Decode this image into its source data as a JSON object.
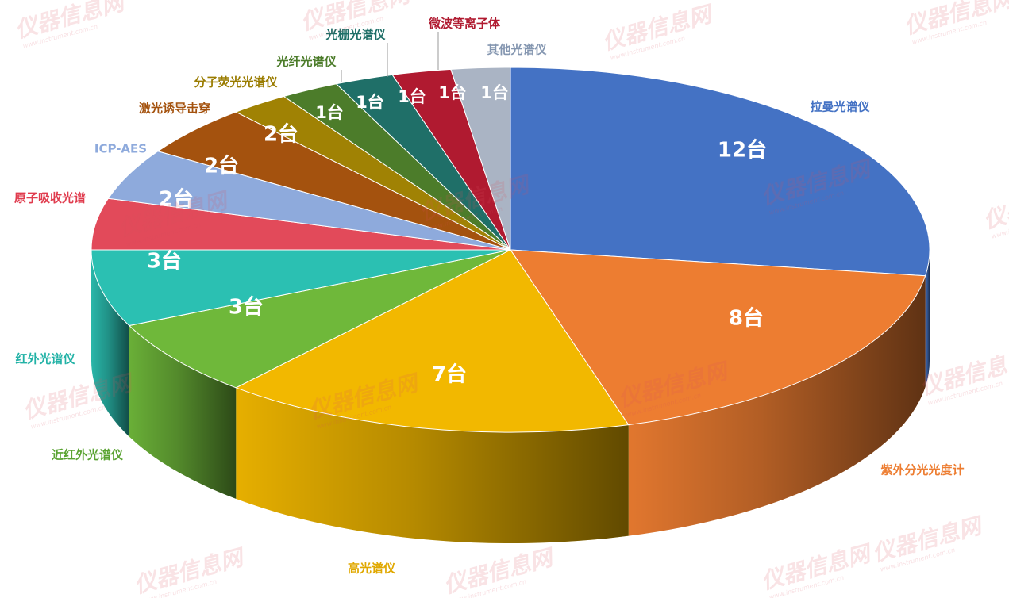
{
  "chart_data": {
    "type": "pie3d",
    "categories": [
      "拉曼光谱仪",
      "紫外分光光度计",
      "高光谱仪",
      "近红外光谱仪",
      "红外光谱仪",
      "原子吸收光谱",
      "ICP-AES",
      "激光诱导击穿",
      "分子荧光光谱仪",
      "光纤光谱仪",
      "光栅光谱仪",
      "微波等离子体",
      "其他光谱仪"
    ],
    "values": [
      12,
      8,
      7,
      3,
      3,
      2,
      2,
      2,
      1,
      1,
      1,
      1,
      1
    ],
    "value_labels": [
      "12台",
      "8台",
      "7台",
      "3台",
      "3台",
      "2台",
      "2台",
      "2台",
      "1台",
      "1台",
      "1台",
      "1台",
      "1台"
    ],
    "colors": [
      "#4472c4",
      "#ed7d31",
      "#f2b800",
      "#6fb83a",
      "#2bc0b2",
      "#e24a5a",
      "#8eaadc",
      "#a4520e",
      "#a08204",
      "#4c7c2a",
      "#1f6f68",
      "#b01a30",
      "#aab4c4"
    ],
    "label_colors": [
      "#4472c4",
      "#ed7d31",
      "#e0a800",
      "#5aa332",
      "#22b2a6",
      "#e03c4e",
      "#8eaadc",
      "#a4520e",
      "#9a7c00",
      "#4c7c2a",
      "#1f6f68",
      "#b01a30",
      "#8496b0"
    ],
    "watermark": "仪器信息网",
    "watermark_url": "www.instrument.com.cn"
  }
}
